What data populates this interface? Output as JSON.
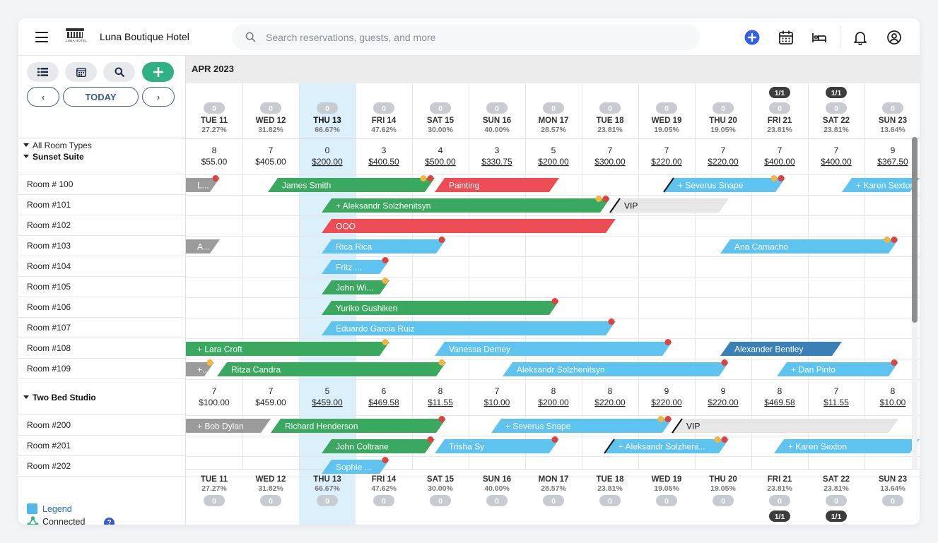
{
  "app": {
    "hotel_name": "Luna Boutique Hotel",
    "logo_text": "LUNA HOTEL",
    "search_placeholder": "Search reservations, guests, and more"
  },
  "sidebar": {
    "prev_label": "‹",
    "today_label": "TODAY",
    "next_label": "›",
    "room_types_filter": "All Room Types",
    "legend_label": "Legend",
    "connected_label": "Connected",
    "help_label": "?"
  },
  "calendar": {
    "month": "APR 2023",
    "days": [
      {
        "label": "TUE 11",
        "pct": "27.27%",
        "count": "0",
        "today": false
      },
      {
        "label": "WED 12",
        "pct": "31.82%",
        "count": "0",
        "today": false
      },
      {
        "label": "THU 13",
        "pct": "66.67%",
        "count": "0",
        "today": true
      },
      {
        "label": "FRI 14",
        "pct": "47.62%",
        "count": "0",
        "today": false
      },
      {
        "label": "SAT 15",
        "pct": "30.00%",
        "count": "0",
        "today": false
      },
      {
        "label": "SUN 16",
        "pct": "40.00%",
        "count": "0",
        "today": false
      },
      {
        "label": "MON 17",
        "pct": "28.57%",
        "count": "0",
        "today": false
      },
      {
        "label": "TUE 18",
        "pct": "23.81%",
        "count": "0",
        "today": false
      },
      {
        "label": "WED 19",
        "pct": "19.05%",
        "count": "0",
        "today": false
      },
      {
        "label": "THU 20",
        "pct": "19.05%",
        "count": "0",
        "today": false
      },
      {
        "label": "FRI 21",
        "pct": "23.81%",
        "count": "0",
        "extra": "1/1",
        "today": false
      },
      {
        "label": "SAT 22",
        "pct": "23.81%",
        "count": "0",
        "extra": "1/1",
        "today": false
      },
      {
        "label": "SUN 23",
        "pct": "13.64%",
        "count": "0",
        "today": false
      }
    ],
    "groups": [
      {
        "name": "Sunset Suite",
        "avail": [
          [
            "8",
            "$55.00"
          ],
          [
            "7",
            "$405.00"
          ],
          [
            "0",
            "$200.00"
          ],
          [
            "3",
            "$400.50"
          ],
          [
            "4",
            "$500.00"
          ],
          [
            "3",
            "$330.75"
          ],
          [
            "5",
            "$200.00"
          ],
          [
            "7",
            "$300.00"
          ],
          [
            "7",
            "$220.00"
          ],
          [
            "7",
            "$220.00"
          ],
          [
            "7",
            "$400.00"
          ],
          [
            "7",
            "$400.00"
          ],
          [
            "9",
            "$367.50"
          ]
        ],
        "rooms": [
          {
            "name": "Room # 100",
            "bookings": [
              {
                "label": "L...",
                "color": "gray",
                "start": 0,
                "end": 0.6,
                "dots": [
                  "red"
                ]
              },
              {
                "label": "James Smith",
                "color": "green",
                "start": 1.45,
                "end": 4.4,
                "dots": [
                  "yellow",
                  "red"
                ]
              },
              {
                "label": "Painting",
                "color": "red",
                "start": 4.4,
                "end": 6.6
              },
              {
                "label": "+ Severus Snape",
                "color": "blue",
                "start": 8.45,
                "end": 10.6,
                "dots": [
                  "yellow",
                  "red"
                ],
                "slash": true
              },
              {
                "label": "+ Karen Sexton",
                "color": "blue",
                "start": 11.6,
                "end": 13.3
              }
            ]
          },
          {
            "name": "Room #101",
            "bookings": [
              {
                "label": "+ Aleksandr Solzhenitsyn",
                "color": "green",
                "start": 2.4,
                "end": 7.5,
                "dots": [
                  "yellow",
                  "red"
                ]
              },
              {
                "label": "VIP",
                "color": "lightgray",
                "start": 7.5,
                "end": 9.6,
                "slash": true
              }
            ]
          },
          {
            "name": "Room #102",
            "bookings": [
              {
                "label": "OOO",
                "color": "red",
                "start": 2.4,
                "end": 7.6
              }
            ]
          },
          {
            "name": "Room #103",
            "bookings": [
              {
                "label": "A...",
                "color": "gray",
                "start": 0,
                "end": 0.6
              },
              {
                "label": "Rica Rica",
                "color": "blue",
                "start": 2.4,
                "end": 4.6,
                "dots": [
                  "red"
                ]
              },
              {
                "label": "Ana Camacho",
                "color": "blue",
                "start": 9.45,
                "end": 12.6,
                "dots": [
                  "yellow",
                  "red"
                ]
              }
            ]
          },
          {
            "name": "Room #104",
            "bookings": [
              {
                "label": "Fritz ...",
                "color": "blue",
                "start": 2.4,
                "end": 3.6,
                "dots": [
                  "red"
                ]
              }
            ]
          },
          {
            "name": "Room #105",
            "bookings": [
              {
                "label": "John Wi...",
                "color": "green",
                "start": 2.4,
                "end": 3.6,
                "dots": [
                  "yellow"
                ]
              }
            ]
          },
          {
            "name": "Room #106",
            "bookings": [
              {
                "label": "Yuriko Gushiken",
                "color": "green",
                "start": 2.4,
                "end": 6.6,
                "dots": [
                  "red"
                ]
              }
            ]
          },
          {
            "name": "Room #107",
            "bookings": [
              {
                "label": "Eduardo Garcia Ruiz",
                "color": "blue",
                "start": 2.4,
                "end": 7.6,
                "dots": [
                  "red"
                ]
              }
            ]
          },
          {
            "name": "Room #108",
            "bookings": [
              {
                "label": "+ Lara Croft",
                "color": "green",
                "start": 0,
                "end": 3.6,
                "dots": [
                  "yellow"
                ]
              },
              {
                "label": "Vanessa Demey",
                "color": "blue",
                "start": 4.4,
                "end": 8.6,
                "dots": [
                  "red"
                ]
              },
              {
                "label": "Alexander Bentley",
                "color": "darkblue",
                "start": 9.45,
                "end": 11.6
              }
            ]
          },
          {
            "name": "Room #109",
            "bookings": [
              {
                "label": "+...",
                "color": "gray",
                "start": 0,
                "end": 0.5,
                "dots": [
                  "yellow"
                ]
              },
              {
                "label": "Ritza Candra",
                "color": "green",
                "start": 0.55,
                "end": 4.6,
                "dots": [
                  "yellow"
                ]
              },
              {
                "label": "Aleksandr Solzhenitsyn",
                "color": "blue",
                "start": 5.6,
                "end": 9.6,
                "dots": [
                  "red"
                ]
              },
              {
                "label": "+ Dan Pinto",
                "color": "blue",
                "start": 10.45,
                "end": 12.6,
                "dots": [
                  "red"
                ]
              }
            ]
          }
        ]
      },
      {
        "name": "Two Bed Studio",
        "avail": [
          [
            "7",
            "$100.00"
          ],
          [
            "7",
            "$459.00"
          ],
          [
            "5",
            "$459.00"
          ],
          [
            "6",
            "$469.58"
          ],
          [
            "8",
            "$11.55"
          ],
          [
            "7",
            "$10.00"
          ],
          [
            "8",
            "$200.00"
          ],
          [
            "8",
            "$220.00"
          ],
          [
            "9",
            "$220.00"
          ],
          [
            "9",
            "$220.00"
          ],
          [
            "8",
            "$469.58"
          ],
          [
            "7",
            "$11.55"
          ],
          [
            "8",
            "$10.00"
          ]
        ],
        "rooms": [
          {
            "name": "Room #200",
            "bookings": [
              {
                "label": "+ Bob Dylan",
                "color": "gray",
                "start": 0,
                "end": 1.5
              },
              {
                "label": "Richard Henderson",
                "color": "green",
                "start": 1.5,
                "end": 4.6,
                "dots": [
                  "red"
                ]
              },
              {
                "label": "+ Severus Snape",
                "color": "blue",
                "start": 5.4,
                "end": 8.6,
                "dots": [
                  "yellow",
                  "red"
                ]
              },
              {
                "label": "VIP",
                "color": "lightgray",
                "start": 8.6,
                "end": 12.6,
                "slash": true
              }
            ]
          },
          {
            "name": "Room #201",
            "bookings": [
              {
                "label": "John Coltrane",
                "color": "green",
                "start": 2.4,
                "end": 4.4,
                "dots": [
                  "red"
                ]
              },
              {
                "label": "Trisha Sy",
                "color": "blue",
                "start": 4.4,
                "end": 6.6,
                "dots": [
                  "red"
                ]
              },
              {
                "label": "+ Aleksandr Solzheni...",
                "color": "blue",
                "start": 7.4,
                "end": 9.6,
                "dots": [
                  "yellow",
                  "red"
                ],
                "slash": true
              },
              {
                "label": "+ Karen Sexton",
                "color": "blue",
                "start": 10.4,
                "end": 13.3
              }
            ]
          },
          {
            "name": "Room #202",
            "bookings": [
              {
                "label": "Sophie ...",
                "color": "blue",
                "start": 2.4,
                "end": 3.6,
                "dots": [
                  "red"
                ]
              }
            ]
          }
        ]
      }
    ]
  },
  "colors": {
    "green": "#3aa85f",
    "blue": "#5ec3ee",
    "red": "#ee4c55",
    "gray": "#9b9b9b",
    "lightgray": "#e6e6e6",
    "darkblue": "#3a7fb6",
    "today": "#dcf0fb",
    "dot_red": "#e2403f",
    "dot_yellow": "#f2b53d"
  },
  "icons": {
    "menu": "hamburger-icon",
    "search": "search-icon",
    "add": "plus-circle-icon",
    "calendar": "calendar-icon",
    "bed": "bed-icon",
    "bell": "bell-icon",
    "user": "user-circle-icon"
  }
}
